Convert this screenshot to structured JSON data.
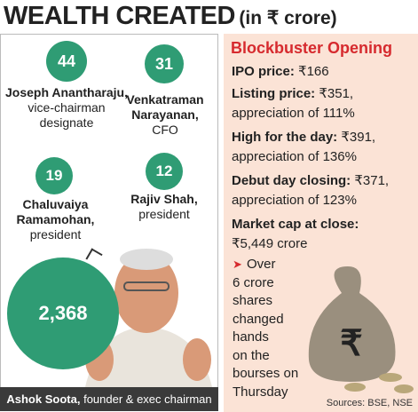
{
  "header": {
    "title": "WEALTH CREATED",
    "unit": "(in ₹ crore)"
  },
  "people": [
    {
      "value": "44",
      "name": "Joseph Anantharaju,",
      "role": "vice-chairman designate"
    },
    {
      "value": "31",
      "name": "Venkatraman Narayanan,",
      "role": "CFO"
    },
    {
      "value": "19",
      "name": "Chaluvaiya Ramamohan,",
      "role": "president"
    },
    {
      "value": "12",
      "name": "Rajiv Shah,",
      "role": "president"
    }
  ],
  "founder": {
    "value": "2,368",
    "name": "Ashok Soota,",
    "role": "founder & exec chairman"
  },
  "panel": {
    "title": "Blockbuster Opening",
    "items": [
      {
        "label": "IPO price:",
        "value": "₹166"
      },
      {
        "label": "Listing price:",
        "value": "₹351,",
        "note": "appreciation of 111%"
      },
      {
        "label": "High for the day:",
        "value": "₹391,",
        "note": "appreciation of 136%"
      },
      {
        "label": "Debut day closing:",
        "value": "₹371,",
        "note": "appreciation of 123%"
      },
      {
        "label": "Market cap at close:",
        "note": "₹5,449 crore"
      }
    ],
    "bullet": [
      "Over",
      "6 crore",
      "shares",
      "changed",
      "hands",
      "on the",
      "bourses on",
      "Thursday"
    ],
    "source": "Sources: BSE, NSE"
  }
}
